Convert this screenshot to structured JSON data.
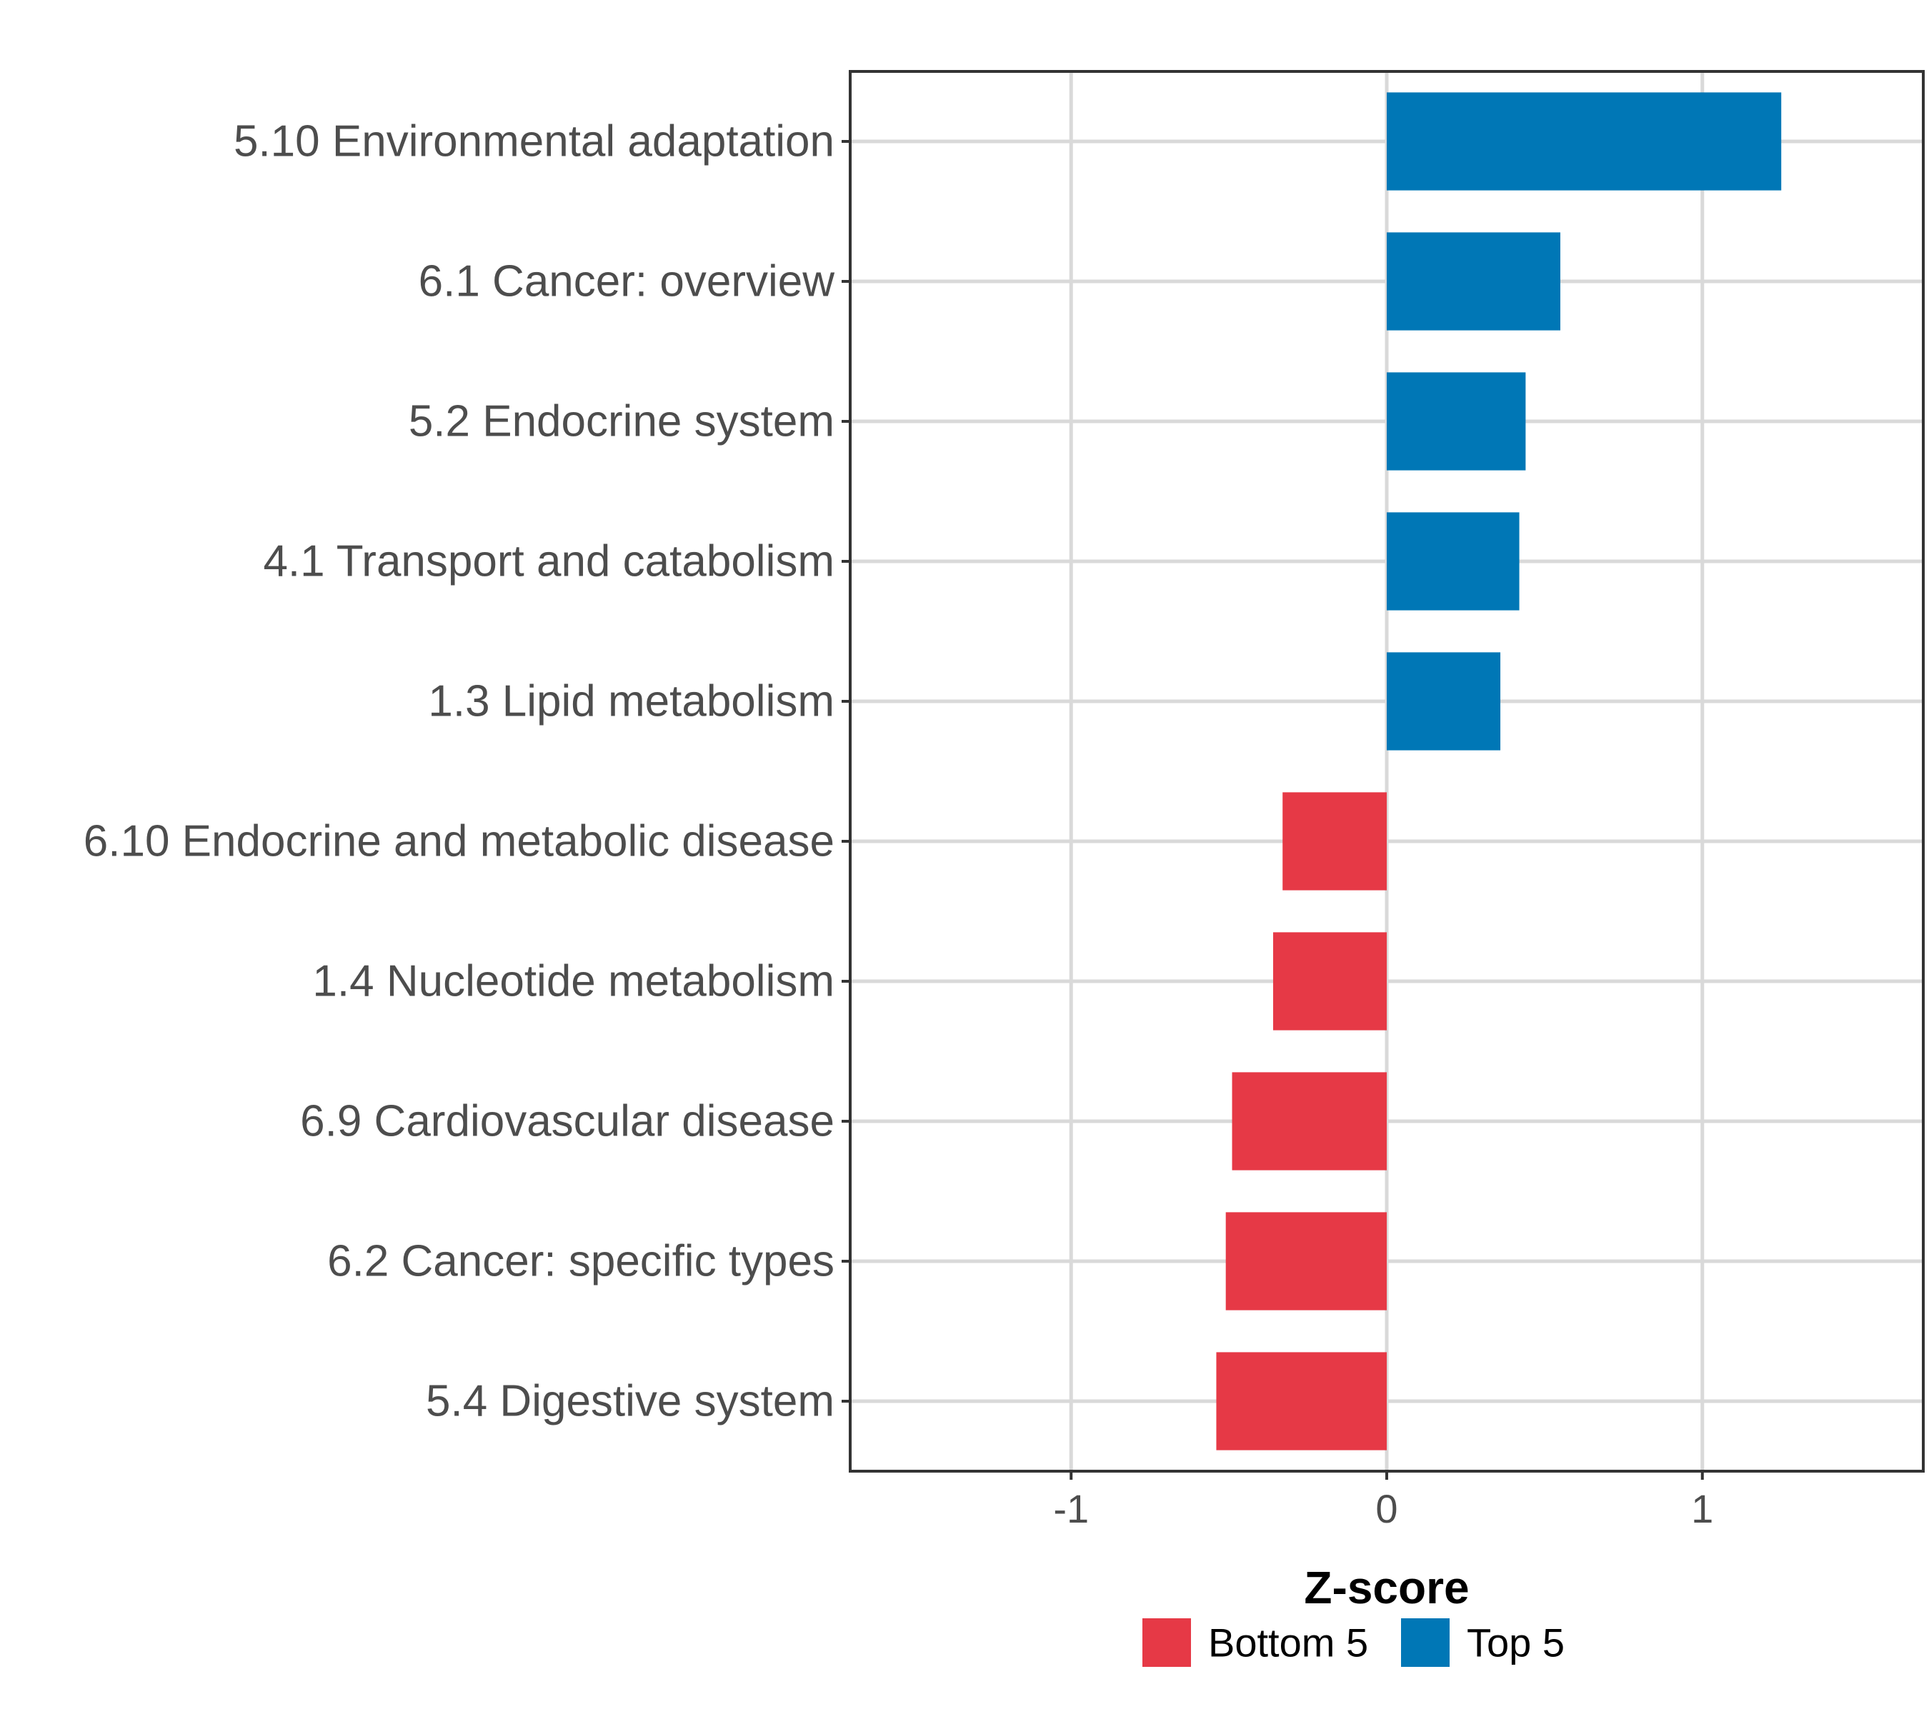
{
  "chart_data": {
    "type": "bar",
    "orientation": "horizontal",
    "categories": [
      "5.10 Environmental adaptation",
      "6.1 Cancer: overview",
      "5.2 Endocrine system",
      "4.1 Transport and catabolism",
      "1.3 Lipid metabolism",
      "6.10 Endocrine and metabolic disease",
      "1.4 Nucleotide metabolism",
      "6.9 Cardiovascular disease",
      "6.2 Cancer: specific types",
      "5.4 Digestive system"
    ],
    "values": [
      1.25,
      0.55,
      0.44,
      0.42,
      0.36,
      -0.33,
      -0.36,
      -0.49,
      -0.51,
      -0.54
    ],
    "groups": [
      "Top 5",
      "Top 5",
      "Top 5",
      "Top 5",
      "Top 5",
      "Bottom 5",
      "Bottom 5",
      "Bottom 5",
      "Bottom 5",
      "Bottom 5"
    ],
    "title": "",
    "xlabel": "Z-score",
    "ylabel": "",
    "xlim": [
      -1.7,
      1.7
    ],
    "xticks": [
      -1,
      0,
      1
    ],
    "xtick_labels": [
      "-1",
      "0",
      "1"
    ],
    "grid": true,
    "legend": {
      "position": "bottom",
      "entries": [
        {
          "label": "Bottom 5",
          "color": "#e63946"
        },
        {
          "label": "Top 5",
          "color": "#0077b6"
        }
      ]
    },
    "colors": {
      "Top 5": "#0077b6",
      "Bottom 5": "#e63946"
    }
  }
}
